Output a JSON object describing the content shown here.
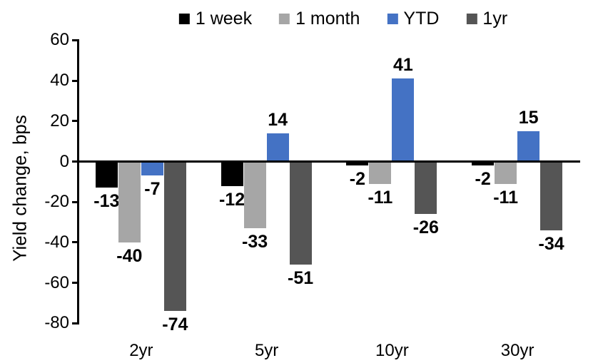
{
  "chart_data": {
    "type": "bar",
    "title": "",
    "ylabel": "Yield change, bps",
    "categories": [
      "2yr",
      "5yr",
      "10yr",
      "30yr"
    ],
    "series": [
      {
        "name": "1 week",
        "color": "#000000",
        "values": [
          -13,
          -12,
          -2,
          -2
        ]
      },
      {
        "name": "1 month",
        "color": "#A6A6A6",
        "values": [
          -40,
          -33,
          -11,
          -11
        ]
      },
      {
        "name": "YTD",
        "color": "#4472C4",
        "values": [
          -7,
          14,
          41,
          15
        ]
      },
      {
        "name": "1yr",
        "color": "#555555",
        "values": [
          -74,
          -51,
          -26,
          -34
        ]
      }
    ],
    "yticks": [
      60,
      40,
      20,
      0,
      -20,
      -40,
      -60,
      -80
    ],
    "ylim": [
      -80,
      60
    ],
    "legend_position": "top",
    "grid": false,
    "data_labels": "outside-end",
    "axis_color": "#000000",
    "text_color": "#000000",
    "background": "#FFFFFF"
  }
}
